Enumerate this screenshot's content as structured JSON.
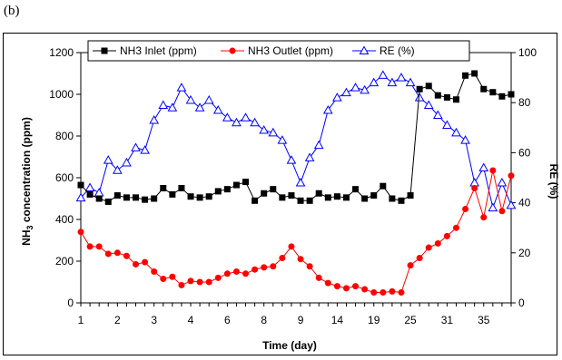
{
  "panel_label": "(b)",
  "chart_data": {
    "type": "line",
    "xlabel": "Time (day)",
    "ylabel": "NH3 concentration (ppm)",
    "ylabel_parts": {
      "pre": "NH",
      "sub": "3",
      "post": " concentration (ppm)"
    },
    "y2label": "RE (%)",
    "ylim": [
      0,
      1200
    ],
    "y2lim": [
      0,
      100
    ],
    "y_ticks": [
      0,
      200,
      400,
      600,
      800,
      1000,
      1200
    ],
    "y2_ticks": [
      0,
      20,
      40,
      60,
      80,
      100
    ],
    "x_ticks": [
      "1",
      "2",
      "3",
      "4",
      "6",
      "8",
      "9",
      "14",
      "19",
      "25",
      "31",
      "35"
    ],
    "x_tick_indices": [
      0,
      4,
      8,
      12,
      16,
      20,
      24,
      28,
      32,
      36,
      40,
      44
    ],
    "n_points": 48,
    "grid": false,
    "legend_position": "top",
    "series": [
      {
        "name": "NH3 Inlet (ppm)",
        "axis": "left",
        "color": "#000000",
        "marker": "square",
        "values": [
          565,
          520,
          500,
          485,
          515,
          505,
          505,
          495,
          500,
          550,
          520,
          550,
          510,
          505,
          510,
          535,
          545,
          565,
          580,
          490,
          525,
          545,
          505,
          515,
          490,
          490,
          525,
          505,
          510,
          505,
          545,
          500,
          515,
          560,
          500,
          490,
          515,
          1025,
          1040,
          995,
          985,
          975,
          1090,
          1100,
          1025,
          1010,
          990,
          1000
        ]
      },
      {
        "name": "NH3 Outlet (ppm)",
        "axis": "left",
        "color": "#ff0000",
        "marker": "circle",
        "values": [
          340,
          270,
          270,
          235,
          240,
          225,
          185,
          195,
          150,
          115,
          125,
          85,
          105,
          100,
          100,
          120,
          140,
          150,
          140,
          160,
          170,
          175,
          215,
          270,
          210,
          175,
          120,
          95,
          80,
          70,
          80,
          65,
          50,
          50,
          55,
          50,
          180,
          215,
          265,
          285,
          320,
          360,
          450,
          550,
          410,
          635,
          440,
          610
        ]
      },
      {
        "name": "RE (%)",
        "axis": "right",
        "color": "#0000ff",
        "marker": "triangle",
        "values": [
          42,
          46,
          44,
          57,
          53,
          56,
          62,
          61,
          73,
          79,
          78,
          86,
          81,
          78,
          81,
          77,
          74,
          72,
          74,
          72,
          69,
          68,
          65,
          57,
          48,
          58,
          63,
          77,
          82,
          84,
          86,
          85,
          88,
          91,
          88,
          90,
          88,
          82,
          79,
          75,
          71,
          68,
          65,
          48,
          54,
          38,
          48,
          39
        ]
      }
    ]
  }
}
